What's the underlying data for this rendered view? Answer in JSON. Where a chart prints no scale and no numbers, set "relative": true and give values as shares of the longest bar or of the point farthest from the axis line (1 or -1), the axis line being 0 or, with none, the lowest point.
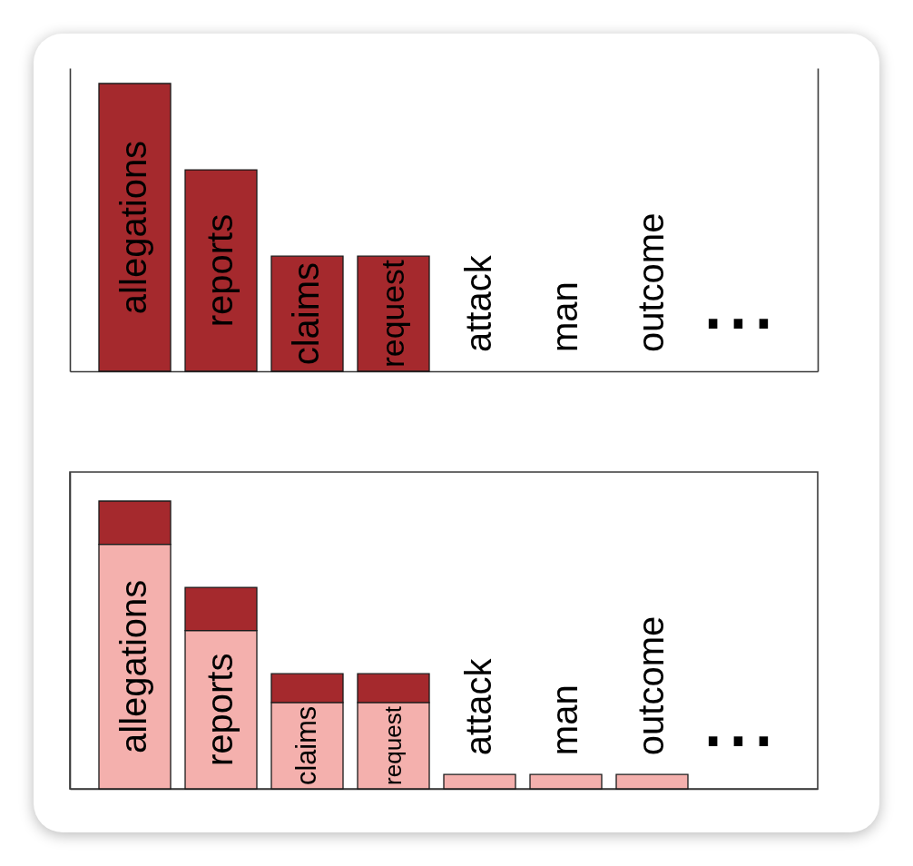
{
  "chart_data": [
    {
      "type": "bar",
      "relative": true,
      "categories": [
        "allegations",
        "reports",
        "claims",
        "request",
        "attack",
        "man",
        "outcome",
        "..."
      ],
      "series": [
        {
          "color": "#a5292d",
          "values": [
            1,
            0.7,
            0.4,
            0.4,
            0,
            0,
            0,
            null
          ]
        }
      ]
    },
    {
      "type": "bar",
      "relative": true,
      "stacked": true,
      "categories": [
        "allegations",
        "reports",
        "claims",
        "request",
        "attack",
        "man",
        "outcome",
        "..."
      ],
      "series": [
        {
          "color": "#f4b0ad",
          "values": [
            0.85,
            0.55,
            0.3,
            0.3,
            0.05,
            0.05,
            0.05,
            null
          ]
        },
        {
          "color": "#a5292d",
          "values": [
            0.15,
            0.15,
            0.1,
            0.1,
            0,
            0,
            0,
            null
          ]
        }
      ]
    }
  ]
}
